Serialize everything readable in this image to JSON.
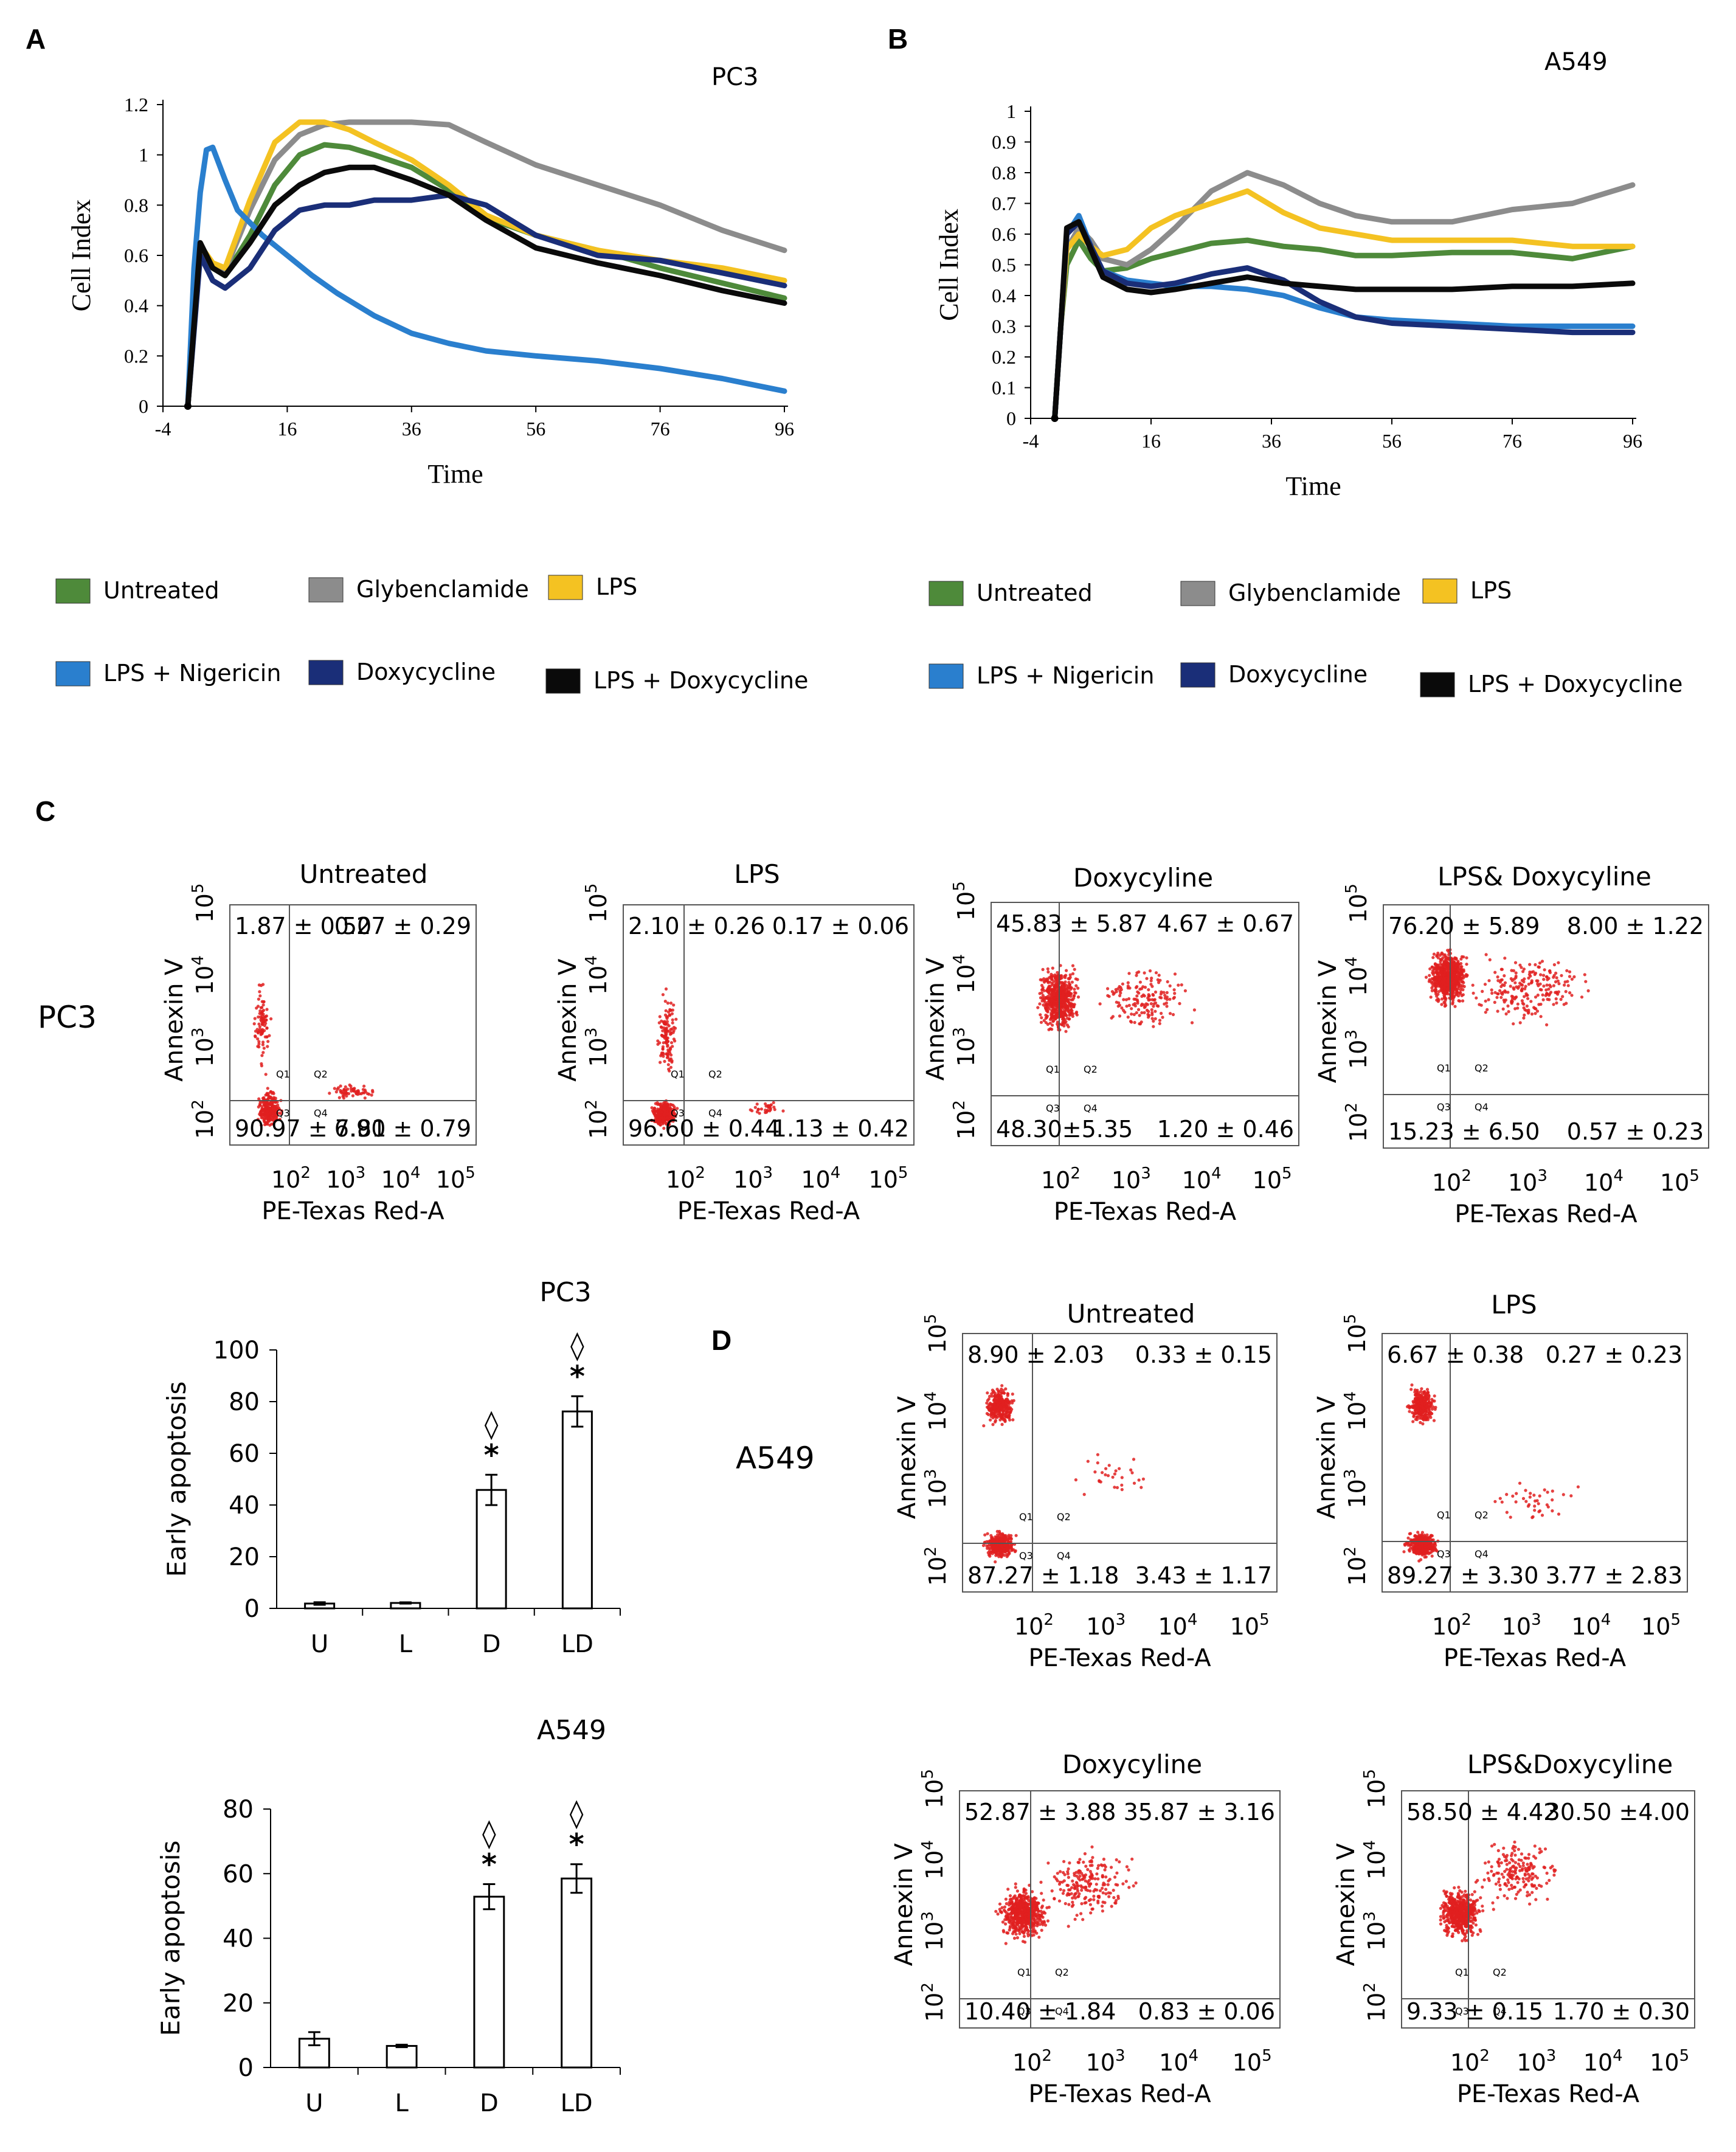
{
  "colors": {
    "Untreated": "#4e8a3a",
    "Glybenclamide": "#8c8c8c",
    "LPS": "#f4c222",
    "LPS + Nigericin": "#2a7fce",
    "Doxycycline": "#1a2e78",
    "LPS + Doxycycline": "#0a0a0a",
    "dots": "#e02020"
  },
  "chart_data": [
    {
      "panel": "A",
      "type": "line",
      "title": "PC3",
      "xlabel": "Time",
      "ylabel": "Cell Index",
      "xlim": [
        -4,
        96
      ],
      "ylim": [
        0,
        1.2
      ],
      "xticks": [
        "-4",
        "16",
        "36",
        "56",
        "76",
        "96"
      ],
      "yticks": [
        "0",
        "0.2",
        "0.4",
        "0.6",
        "0.8",
        "1",
        "1.2"
      ],
      "series": [
        {
          "name": "Untreated",
          "x": [
            0,
            2,
            4,
            6,
            10,
            14,
            18,
            22,
            26,
            30,
            36,
            42,
            48,
            56,
            66,
            76,
            86,
            96
          ],
          "y": [
            0,
            0.62,
            0.55,
            0.52,
            0.68,
            0.88,
            1.0,
            1.04,
            1.03,
            1.0,
            0.95,
            0.86,
            0.75,
            0.68,
            0.62,
            0.55,
            0.49,
            0.43
          ]
        },
        {
          "name": "Glybenclamide",
          "x": [
            0,
            2,
            4,
            6,
            10,
            14,
            18,
            22,
            26,
            30,
            36,
            42,
            48,
            56,
            66,
            76,
            86,
            96
          ],
          "y": [
            0,
            0.63,
            0.56,
            0.54,
            0.78,
            0.98,
            1.08,
            1.12,
            1.13,
            1.13,
            1.13,
            1.12,
            1.05,
            0.96,
            0.88,
            0.8,
            0.7,
            0.62
          ]
        },
        {
          "name": "LPS",
          "x": [
            0,
            2,
            4,
            6,
            10,
            14,
            18,
            22,
            26,
            30,
            36,
            42,
            48,
            56,
            66,
            76,
            86,
            96
          ],
          "y": [
            0,
            0.64,
            0.57,
            0.55,
            0.82,
            1.05,
            1.13,
            1.13,
            1.1,
            1.05,
            0.98,
            0.88,
            0.76,
            0.68,
            0.62,
            0.58,
            0.55,
            0.5
          ]
        },
        {
          "name": "LPS + Nigericin",
          "x": [
            0,
            1,
            2,
            3,
            4,
            6,
            8,
            12,
            16,
            20,
            24,
            30,
            36,
            42,
            48,
            56,
            66,
            76,
            86,
            96
          ],
          "y": [
            0,
            0.55,
            0.85,
            1.02,
            1.03,
            0.9,
            0.78,
            0.68,
            0.6,
            0.52,
            0.45,
            0.36,
            0.29,
            0.25,
            0.22,
            0.2,
            0.18,
            0.15,
            0.11,
            0.06
          ]
        },
        {
          "name": "Doxycycline",
          "x": [
            0,
            2,
            4,
            6,
            10,
            14,
            18,
            22,
            26,
            30,
            36,
            42,
            48,
            56,
            66,
            76,
            86,
            96
          ],
          "y": [
            0,
            0.6,
            0.5,
            0.47,
            0.55,
            0.7,
            0.78,
            0.8,
            0.8,
            0.82,
            0.82,
            0.84,
            0.8,
            0.68,
            0.6,
            0.58,
            0.53,
            0.48
          ]
        },
        {
          "name": "LPS + Doxycycline",
          "x": [
            0,
            2,
            4,
            6,
            10,
            14,
            18,
            22,
            26,
            30,
            36,
            42,
            48,
            56,
            66,
            76,
            86,
            96
          ],
          "y": [
            0,
            0.65,
            0.55,
            0.52,
            0.65,
            0.8,
            0.88,
            0.93,
            0.95,
            0.95,
            0.9,
            0.84,
            0.74,
            0.63,
            0.57,
            0.52,
            0.46,
            0.41
          ]
        }
      ]
    },
    {
      "panel": "B",
      "type": "line",
      "title": "A549",
      "xlabel": "Time",
      "ylabel": "Cell Index",
      "xlim": [
        -4,
        96
      ],
      "ylim": [
        0,
        1
      ],
      "xticks": [
        "-4",
        "16",
        "36",
        "56",
        "76",
        "96"
      ],
      "yticks": [
        "0",
        "0.1",
        "0.2",
        "0.3",
        "0.4",
        "0.5",
        "0.6",
        "0.7",
        "0.8",
        "0.9",
        "1"
      ],
      "series": [
        {
          "name": "Untreated",
          "x": [
            0,
            1,
            2,
            4,
            6,
            8,
            12,
            16,
            20,
            26,
            32,
            38,
            44,
            50,
            56,
            66,
            76,
            86,
            96
          ],
          "y": [
            0,
            0.3,
            0.5,
            0.58,
            0.52,
            0.48,
            0.49,
            0.52,
            0.54,
            0.57,
            0.58,
            0.56,
            0.55,
            0.53,
            0.53,
            0.54,
            0.54,
            0.52,
            0.56
          ]
        },
        {
          "name": "Glybenclamide",
          "x": [
            0,
            1,
            2,
            4,
            6,
            8,
            12,
            16,
            20,
            26,
            32,
            38,
            44,
            50,
            56,
            66,
            76,
            86,
            96
          ],
          "y": [
            0,
            0.3,
            0.55,
            0.62,
            0.58,
            0.52,
            0.5,
            0.55,
            0.62,
            0.74,
            0.8,
            0.76,
            0.7,
            0.66,
            0.64,
            0.64,
            0.68,
            0.7,
            0.76
          ]
        },
        {
          "name": "LPS",
          "x": [
            0,
            1,
            2,
            4,
            6,
            8,
            12,
            16,
            20,
            26,
            32,
            38,
            44,
            50,
            56,
            66,
            76,
            86,
            96
          ],
          "y": [
            0,
            0.3,
            0.55,
            0.6,
            0.56,
            0.53,
            0.55,
            0.62,
            0.66,
            0.7,
            0.74,
            0.67,
            0.62,
            0.6,
            0.58,
            0.58,
            0.58,
            0.56,
            0.56
          ]
        },
        {
          "name": "LPS + Nigericin",
          "x": [
            0,
            1,
            2,
            4,
            6,
            8,
            12,
            16,
            20,
            26,
            32,
            38,
            44,
            50,
            56,
            66,
            76,
            86,
            96
          ],
          "y": [
            0,
            0.3,
            0.6,
            0.66,
            0.56,
            0.48,
            0.45,
            0.44,
            0.43,
            0.43,
            0.42,
            0.4,
            0.36,
            0.33,
            0.32,
            0.31,
            0.3,
            0.3,
            0.3
          ]
        },
        {
          "name": "Doxycycline",
          "x": [
            0,
            1,
            2,
            4,
            6,
            8,
            12,
            16,
            20,
            26,
            32,
            38,
            44,
            50,
            56,
            66,
            76,
            86,
            96
          ],
          "y": [
            0,
            0.3,
            0.6,
            0.64,
            0.56,
            0.48,
            0.44,
            0.43,
            0.44,
            0.47,
            0.49,
            0.45,
            0.38,
            0.33,
            0.31,
            0.3,
            0.29,
            0.28,
            0.28
          ]
        },
        {
          "name": "LPS + Doxycycline",
          "x": [
            0,
            1,
            2,
            4,
            6,
            8,
            12,
            16,
            20,
            26,
            32,
            38,
            44,
            50,
            56,
            66,
            76,
            86,
            96
          ],
          "y": [
            0,
            0.3,
            0.62,
            0.64,
            0.55,
            0.46,
            0.42,
            0.41,
            0.42,
            0.44,
            0.46,
            0.44,
            0.43,
            0.42,
            0.42,
            0.42,
            0.43,
            0.43,
            0.44
          ]
        }
      ]
    },
    {
      "panel": "C-bar",
      "type": "bar",
      "title": "PC3",
      "ylabel": "Early apoptosis",
      "categories": [
        "U",
        "L",
        "D",
        "LD"
      ],
      "values": [
        1.87,
        2.1,
        45.83,
        76.2
      ],
      "errors": [
        0.5,
        0.26,
        5.87,
        5.89
      ],
      "significance": [
        "",
        "",
        "◊*",
        "◊*"
      ],
      "ylim": [
        0,
        100
      ],
      "yticks": [
        "0",
        "20",
        "40",
        "60",
        "80",
        "100"
      ]
    },
    {
      "panel": "D-bar",
      "type": "bar",
      "title": "A549",
      "ylabel": "Early apoptosis",
      "categories": [
        "U",
        "L",
        "D",
        "LD"
      ],
      "values": [
        8.9,
        6.67,
        52.87,
        58.5
      ],
      "errors": [
        2.03,
        0.38,
        3.88,
        4.42
      ],
      "significance": [
        "",
        "",
        "◊*",
        "◊*"
      ],
      "ylim": [
        0,
        80
      ],
      "yticks": [
        "0",
        "20",
        "40",
        "60",
        "80"
      ]
    },
    {
      "panel": "C/D",
      "type": "scatter",
      "xlabel": "PE-Texas Red-A",
      "ylabel": "Annexin V",
      "gate_labels": [
        "Q1",
        "Q2",
        "Q3",
        "Q4"
      ],
      "ticks": {
        "base": "10",
        "exps": [
          "2",
          "3",
          "4",
          "5"
        ]
      },
      "plots": [
        {
          "cell_line": "PC3",
          "condition": "Untreated",
          "q_upper_left": "1.87 ± 0.50",
          "q_upper_right": "0.27 ± 0.29",
          "q_lower_left": "90.97 ± 7.81",
          "q_lower_right": "6.90 ± 0.79"
        },
        {
          "cell_line": "PC3",
          "condition": "LPS",
          "q_upper_left": "2.10 ± 0.26",
          "q_upper_right": "0.17 ± 0.06",
          "q_lower_left": "96.60 ± 0.44",
          "q_lower_right": "1.13 ± 0.42"
        },
        {
          "cell_line": "PC3",
          "condition": "Doxycyline",
          "q_upper_left": "45.83 ± 5.87",
          "q_upper_right": "4.67 ± 0.67",
          "q_lower_left": "48.30±5.35",
          "q_lower_right": "1.20 ± 0.46"
        },
        {
          "cell_line": "PC3",
          "condition": "LPS& Doxycyline",
          "q_upper_left": "76.20 ± 5.89",
          "q_upper_right": "8.00 ± 1.22",
          "q_lower_left": "15.23 ± 6.50",
          "q_lower_right": "0.57 ± 0.23"
        },
        {
          "cell_line": "A549",
          "condition": "Untreated",
          "q_upper_left": "8.90 ± 2.03",
          "q_upper_right": "0.33 ± 0.15",
          "q_lower_left": "87.27 ± 1.18",
          "q_lower_right": "3.43 ± 1.17"
        },
        {
          "cell_line": "A549",
          "condition": "LPS",
          "q_upper_left": "6.67 ± 0.38",
          "q_upper_right": "0.27 ± 0.23",
          "q_lower_left": "89.27 ± 3.30",
          "q_lower_right": "3.77 ± 2.83"
        },
        {
          "cell_line": "A549",
          "condition": "Doxycyline",
          "q_upper_left": "52.87 ± 3.88",
          "q_upper_right": "35.87 ± 3.16",
          "q_lower_left": "10.40 ± 1.84",
          "q_lower_right": "0.83 ± 0.06"
        },
        {
          "cell_line": "A549",
          "condition": "LPS&Doxycyline",
          "q_upper_left": "58.50 ± 4.42",
          "q_upper_right": "30.50 ±4.00",
          "q_lower_left": "9.33 ± 0.15",
          "q_lower_right": "1.70 ± 0.30"
        }
      ]
    }
  ],
  "panel_labels": {
    "a": "A",
    "b": "B",
    "c": "C",
    "d": "D"
  },
  "row_labels": {
    "pc3": "PC3",
    "a549": "A549"
  }
}
